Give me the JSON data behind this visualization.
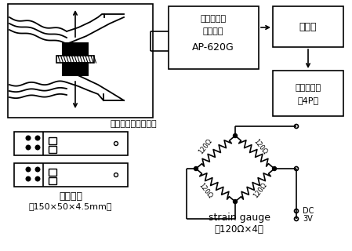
{
  "line_color": "#000000",
  "box1_label1": "歪み圧力計",
  "box1_label2": "前増幅器",
  "box1_label3": "AP-620G",
  "box2_label": "増幅器",
  "box3_label1": "ペン記録器",
  "box3_label2": "（4P）",
  "caption_center": "多用途監視記録装置",
  "hagane_label1": "はがね板",
  "hagane_label2": "（150×50×4.5mm）",
  "strain_label1": "strain gauge",
  "strain_label2": "（120Ω×4）",
  "r120": "120Ω",
  "dc_label": "DC",
  "v3_label": "3V"
}
